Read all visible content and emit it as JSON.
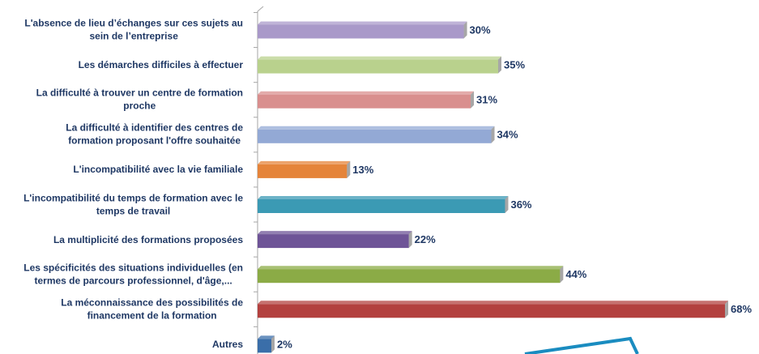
{
  "chart_data": {
    "type": "bar",
    "orientation": "horizontal",
    "categories": [
      "L'absence de lieu d’échanges sur ces sujets au\nsein de l’entreprise",
      "Les démarches difficiles à effectuer",
      "La difficulté à trouver un centre de formation\nproche",
      "La difficulté à identifier des centres de\nformation proposant l'offre souhaitée",
      "L'incompatibilité avec la vie familiale",
      "L'incompatibilité du temps de formation avec le\ntemps de travail",
      "La multiplicité des formations proposées",
      "Les spécificités des situations individuelles (en\ntermes de parcours professionnel, d'âge,...",
      "La méconnaissance des possibilités de\nfinancement de la formation",
      "Autres"
    ],
    "values": [
      30,
      35,
      31,
      34,
      13,
      36,
      22,
      44,
      68,
      2
    ],
    "value_labels": [
      "30%",
      "35%",
      "31%",
      "34%",
      "13%",
      "36%",
      "22%",
      "44%",
      "68%",
      "2%"
    ],
    "colors": [
      "#a999c9",
      "#b9d18d",
      "#d98f8e",
      "#93a9d5",
      "#e5843a",
      "#3b9ab4",
      "#6e5497",
      "#8bab46",
      "#b3413f",
      "#3a6ea9"
    ]
  }
}
